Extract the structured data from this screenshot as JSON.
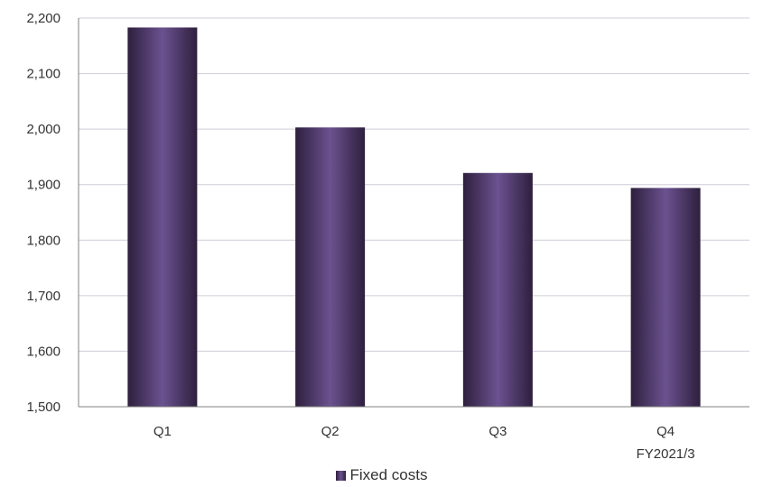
{
  "chart_data": {
    "type": "bar",
    "categories": [
      "Q1",
      "Q2",
      "Q3",
      "Q4"
    ],
    "subcategory_label": "FY2021/3",
    "series": [
      {
        "name": "Fixed costs",
        "values": [
          2183,
          2003,
          1921,
          1894
        ]
      }
    ],
    "title": "",
    "xlabel": "",
    "ylabel": "",
    "ylim": [
      1500,
      2200
    ],
    "yticks": [
      "1,500",
      "1,600",
      "1,700",
      "1,800",
      "1,900",
      "2,000",
      "2,100",
      "2,200"
    ],
    "grid": true,
    "legend_position": "bottom",
    "colors": {
      "bar_edge": "#2e1f3d",
      "bar_center": "#6b5290",
      "grid": "#d0ccd8",
      "axis": "#808080"
    }
  }
}
